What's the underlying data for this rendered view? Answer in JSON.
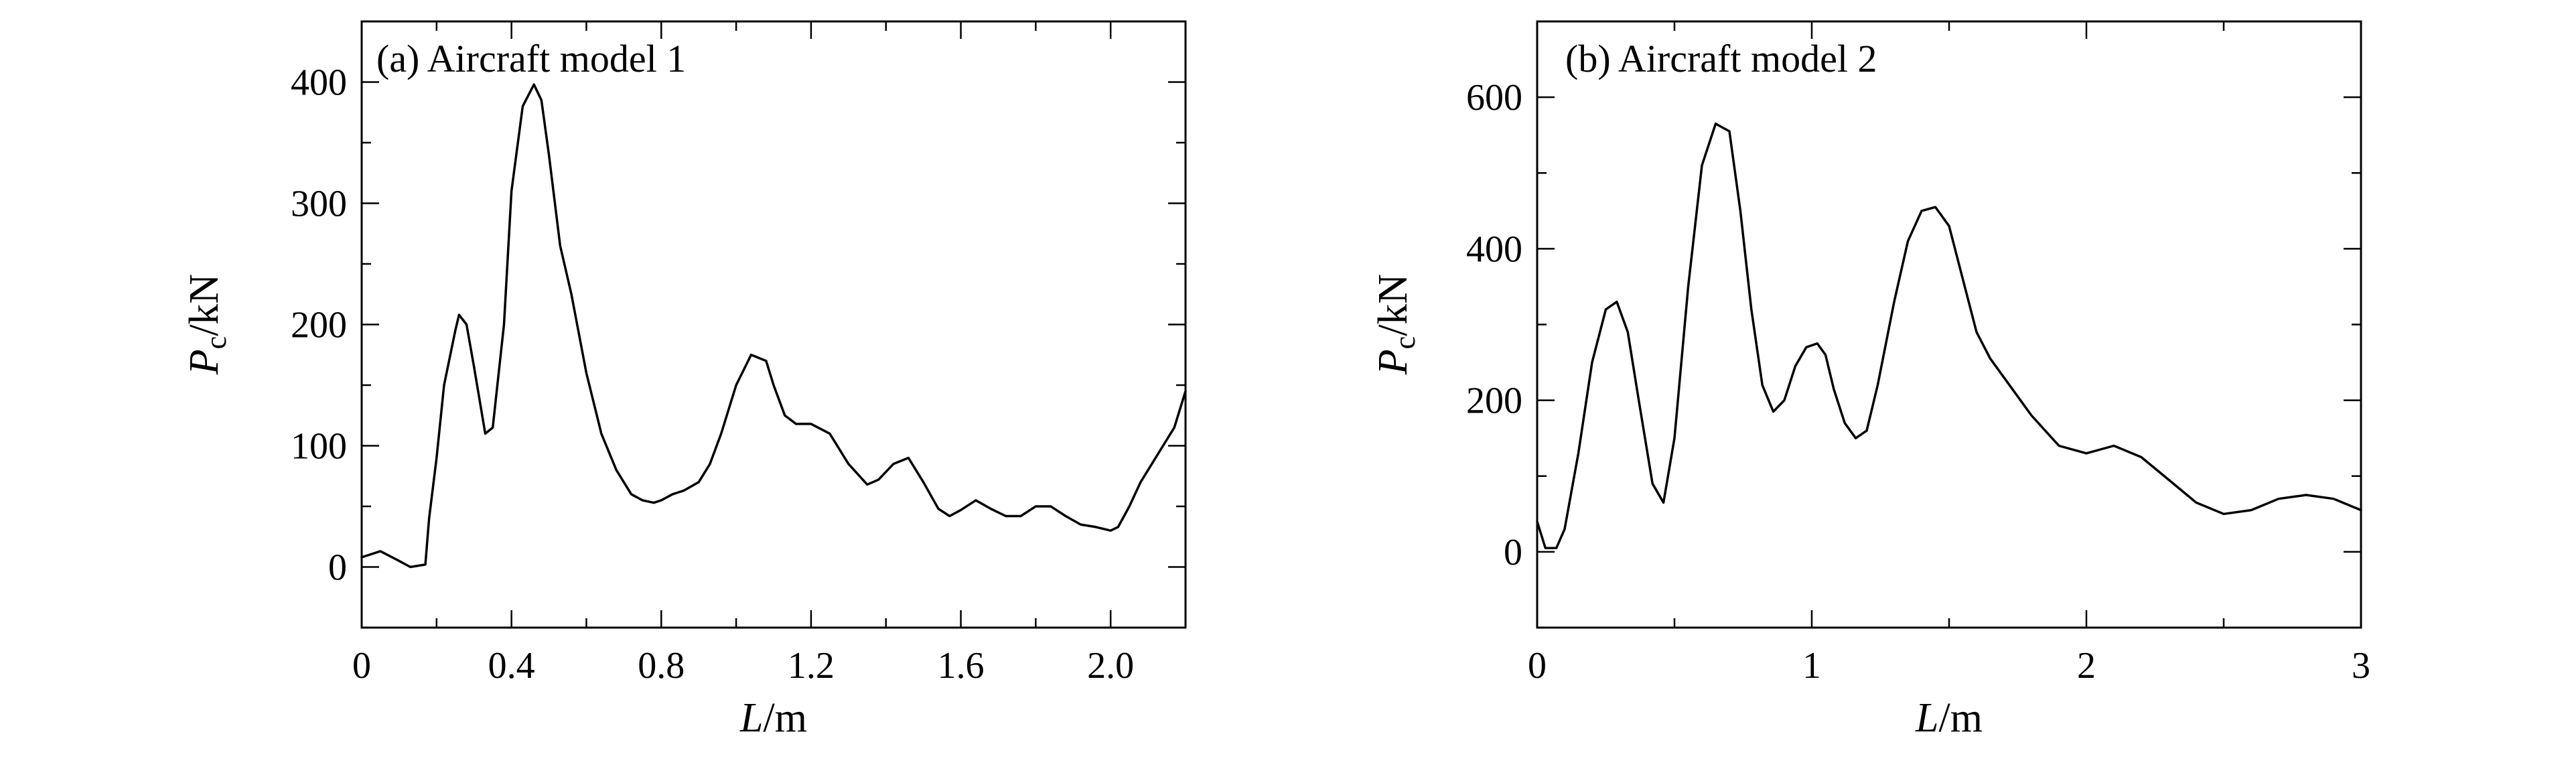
{
  "chart_data": [
    {
      "type": "line",
      "title": "(a) Aircraft model 1",
      "xlabel_var": "L",
      "xlabel_unit": "/m",
      "ylabel_var": "P",
      "ylabel_sub": "c",
      "ylabel_unit": "/kN",
      "xlim": [
        0,
        2.2
      ],
      "ylim": [
        -50,
        450
      ],
      "xticks": [
        0,
        0.4,
        0.8,
        1.2,
        1.6,
        2.0
      ],
      "xtick_labels": [
        "0",
        "0.4",
        "0.8",
        "1.2",
        "1.6",
        "2.0"
      ],
      "yticks": [
        0,
        100,
        200,
        300,
        400
      ],
      "ytick_labels": [
        "0",
        "100",
        "200",
        "300",
        "400"
      ],
      "grid": false,
      "series": [
        {
          "x": [
            0,
            0.05,
            0.1,
            0.13,
            0.17,
            0.18,
            0.2,
            0.22,
            0.25,
            0.26,
            0.28,
            0.3,
            0.33,
            0.35,
            0.38,
            0.4,
            0.43,
            0.46,
            0.48,
            0.5,
            0.53,
            0.56,
            0.6,
            0.64,
            0.68,
            0.72,
            0.75,
            0.78,
            0.8,
            0.83,
            0.86,
            0.9,
            0.93,
            0.96,
            1.0,
            1.04,
            1.08,
            1.1,
            1.13,
            1.16,
            1.2,
            1.25,
            1.3,
            1.35,
            1.38,
            1.42,
            1.46,
            1.5,
            1.54,
            1.57,
            1.6,
            1.64,
            1.68,
            1.72,
            1.76,
            1.8,
            1.84,
            1.88,
            1.92,
            1.96,
            2.0,
            2.02,
            2.05,
            2.08,
            2.11,
            2.14,
            2.17,
            2.2
          ],
          "y": [
            8,
            13,
            5,
            0,
            2,
            40,
            90,
            150,
            195,
            208,
            200,
            165,
            110,
            115,
            200,
            310,
            380,
            398,
            385,
            340,
            265,
            225,
            160,
            110,
            80,
            60,
            55,
            53,
            55,
            60,
            63,
            70,
            85,
            110,
            150,
            175,
            170,
            150,
            125,
            118,
            118,
            110,
            85,
            68,
            72,
            85,
            90,
            70,
            48,
            42,
            47,
            55,
            48,
            42,
            42,
            50,
            50,
            42,
            35,
            33,
            30,
            33,
            50,
            70,
            85,
            100,
            115,
            145
          ]
        }
      ]
    },
    {
      "type": "line",
      "title": "(b) Aircraft model 2",
      "xlabel_var": "L",
      "xlabel_unit": "/m",
      "ylabel_var": "P",
      "ylabel_sub": "c",
      "ylabel_unit": "/kN",
      "xlim": [
        0,
        3
      ],
      "ylim": [
        -100,
        700
      ],
      "xticks": [
        0,
        1,
        2,
        3
      ],
      "xtick_labels": [
        "0",
        "1",
        "2",
        "3"
      ],
      "yticks": [
        0,
        200,
        400,
        600
      ],
      "ytick_labels": [
        "0",
        "200",
        "400",
        "600"
      ],
      "grid": false,
      "series": [
        {
          "x": [
            0,
            0.03,
            0.07,
            0.1,
            0.15,
            0.2,
            0.25,
            0.29,
            0.33,
            0.37,
            0.42,
            0.46,
            0.5,
            0.55,
            0.6,
            0.65,
            0.7,
            0.74,
            0.78,
            0.82,
            0.86,
            0.9,
            0.94,
            0.98,
            1.02,
            1.05,
            1.08,
            1.12,
            1.16,
            1.2,
            1.24,
            1.3,
            1.35,
            1.4,
            1.45,
            1.5,
            1.55,
            1.6,
            1.65,
            1.7,
            1.8,
            1.9,
            2.0,
            2.1,
            2.2,
            2.3,
            2.4,
            2.5,
            2.6,
            2.7,
            2.8,
            2.9,
            3.0
          ],
          "y": [
            40,
            5,
            5,
            30,
            130,
            250,
            320,
            330,
            290,
            200,
            90,
            65,
            150,
            350,
            510,
            565,
            555,
            450,
            320,
            220,
            185,
            200,
            245,
            270,
            275,
            260,
            215,
            170,
            150,
            160,
            220,
            330,
            410,
            450,
            455,
            430,
            360,
            290,
            255,
            230,
            180,
            140,
            130,
            140,
            125,
            95,
            65,
            50,
            55,
            70,
            75,
            70,
            55
          ]
        }
      ]
    }
  ]
}
